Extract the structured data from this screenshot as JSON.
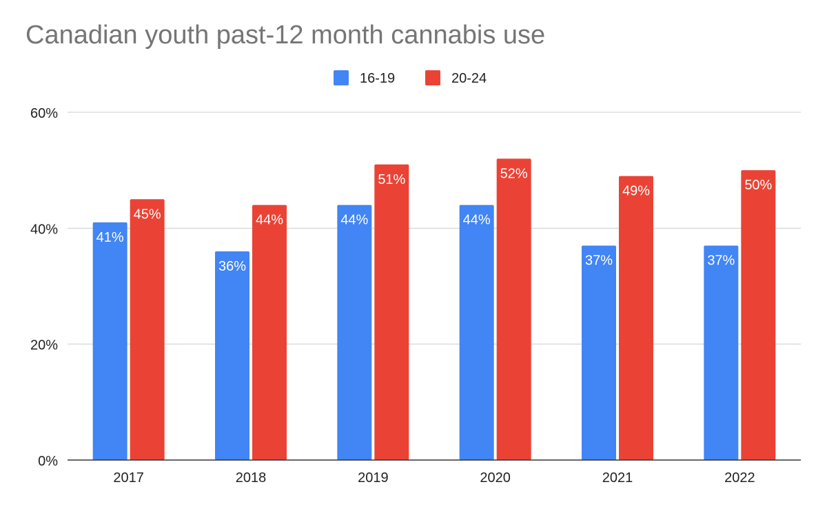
{
  "chart_data": {
    "type": "bar",
    "title": "Canadian youth past-12 month cannabis use",
    "xlabel": "",
    "ylabel": "",
    "categories": [
      "2017",
      "2018",
      "2019",
      "2020",
      "2021",
      "2022"
    ],
    "series": [
      {
        "name": "16-19",
        "color": "#4285f4",
        "values": [
          41,
          36,
          44,
          44,
          37,
          37
        ]
      },
      {
        "name": "20-24",
        "color": "#ea4335",
        "values": [
          45,
          44,
          51,
          52,
          49,
          50
        ]
      }
    ],
    "data_label_suffix": "%",
    "ylim": [
      0,
      60
    ],
    "yticks": [
      0,
      20,
      40,
      60
    ],
    "ytick_labels": [
      "0%",
      "20%",
      "40%",
      "60%"
    ],
    "grid": true,
    "legend": "top-center"
  }
}
